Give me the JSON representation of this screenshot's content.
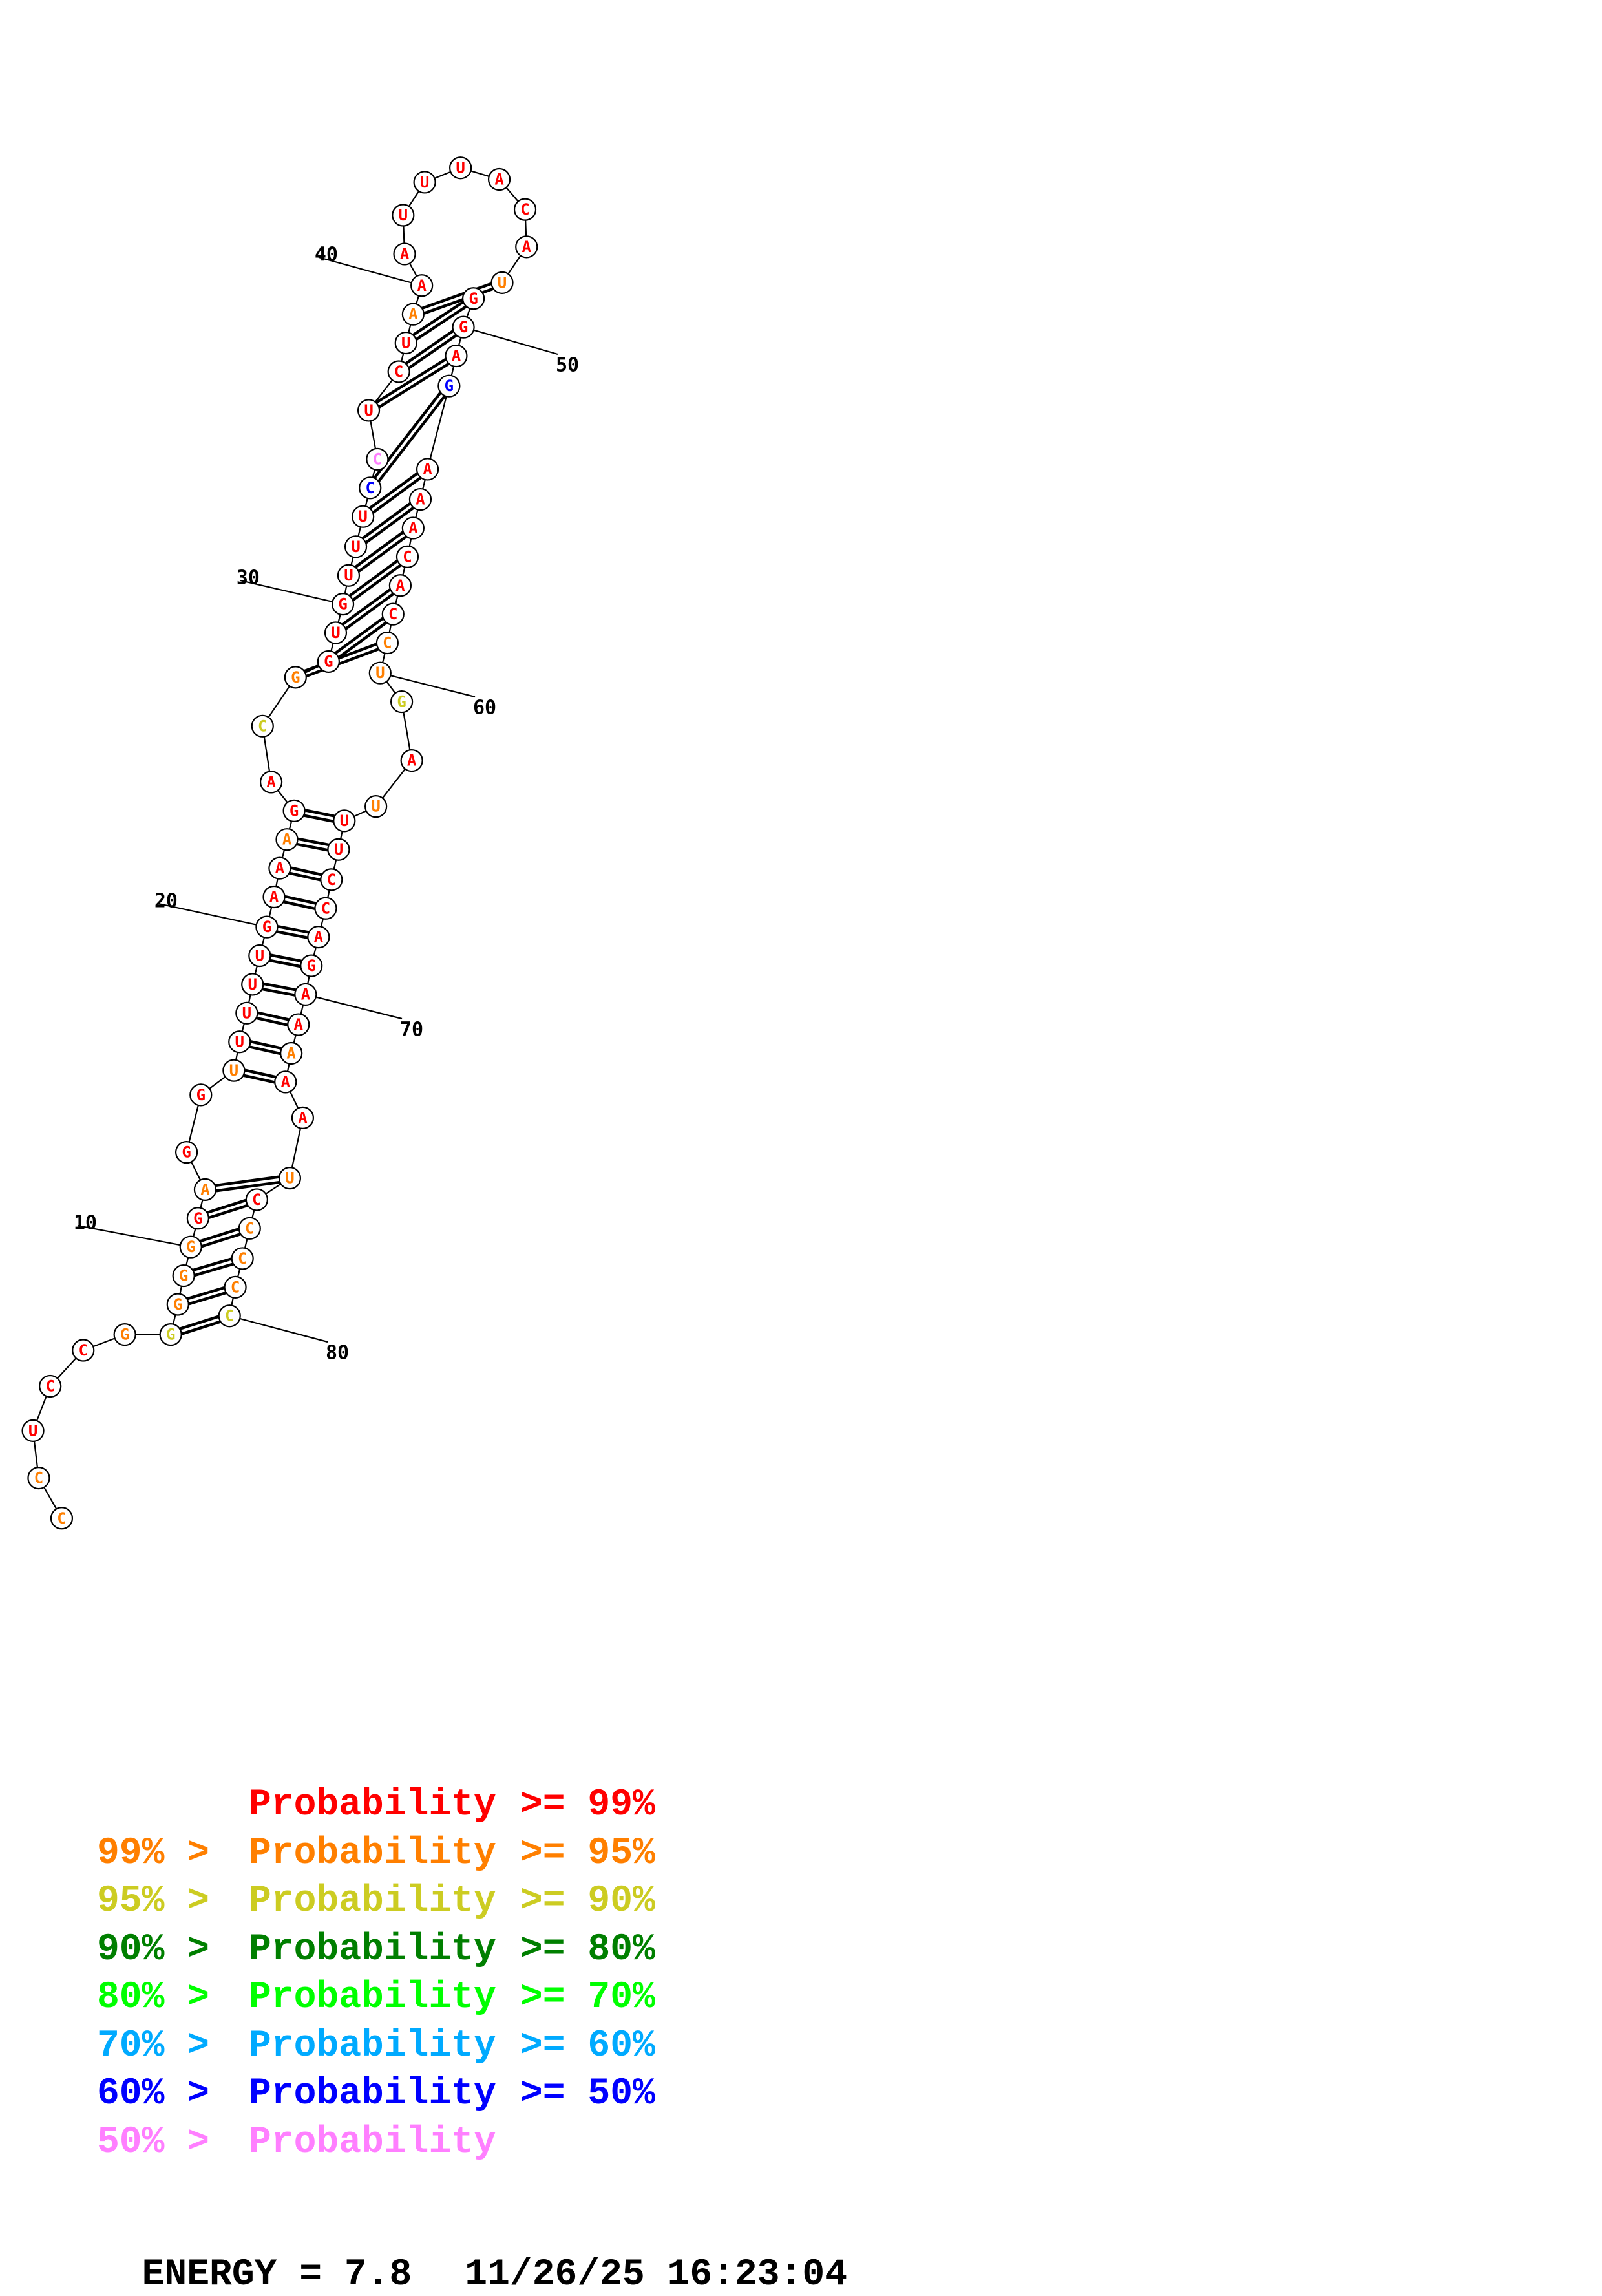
{
  "colors": {
    "p99": "#ff0000",
    "p95": "#ff7f00",
    "p90": "#cccc22",
    "p80": "#007f00",
    "p70": "#00ff00",
    "p60": "#00aaff",
    "p50": "#0000ff",
    "plow": "#ff7fff"
  },
  "nucleotides": [
    {
      "n": 1,
      "b": "C",
      "c": "p95"
    },
    {
      "n": 2,
      "b": "C",
      "c": "p95"
    },
    {
      "n": 3,
      "b": "U",
      "c": "p99"
    },
    {
      "n": 4,
      "b": "C",
      "c": "p99"
    },
    {
      "n": 5,
      "b": "C",
      "c": "p99"
    },
    {
      "n": 6,
      "b": "G",
      "c": "p95"
    },
    {
      "n": 7,
      "b": "G",
      "c": "p90"
    },
    {
      "n": 8,
      "b": "G",
      "c": "p95"
    },
    {
      "n": 9,
      "b": "G",
      "c": "p95"
    },
    {
      "n": 10,
      "b": "G",
      "c": "p95"
    },
    {
      "n": 11,
      "b": "G",
      "c": "p99"
    },
    {
      "n": 12,
      "b": "A",
      "c": "p95"
    },
    {
      "n": 13,
      "b": "G",
      "c": "p99"
    },
    {
      "n": 14,
      "b": "G",
      "c": "p99"
    },
    {
      "n": 15,
      "b": "U",
      "c": "p95"
    },
    {
      "n": 16,
      "b": "U",
      "c": "p99"
    },
    {
      "n": 17,
      "b": "U",
      "c": "p99"
    },
    {
      "n": 18,
      "b": "U",
      "c": "p99"
    },
    {
      "n": 19,
      "b": "U",
      "c": "p99"
    },
    {
      "n": 20,
      "b": "G",
      "c": "p99"
    },
    {
      "n": 21,
      "b": "A",
      "c": "p99"
    },
    {
      "n": 22,
      "b": "A",
      "c": "p99"
    },
    {
      "n": 23,
      "b": "A",
      "c": "p95"
    },
    {
      "n": 24,
      "b": "G",
      "c": "p99"
    },
    {
      "n": 25,
      "b": "A",
      "c": "p99"
    },
    {
      "n": 26,
      "b": "C",
      "c": "p90"
    },
    {
      "n": 27,
      "b": "G",
      "c": "p95"
    },
    {
      "n": 28,
      "b": "G",
      "c": "p99"
    },
    {
      "n": 29,
      "b": "U",
      "c": "p99"
    },
    {
      "n": 30,
      "b": "G",
      "c": "p99"
    },
    {
      "n": 31,
      "b": "U",
      "c": "p99"
    },
    {
      "n": 32,
      "b": "U",
      "c": "p99"
    },
    {
      "n": 33,
      "b": "U",
      "c": "p99"
    },
    {
      "n": 34,
      "b": "C",
      "c": "p50"
    },
    {
      "n": 35,
      "b": "C",
      "c": "plow"
    },
    {
      "n": 36,
      "b": "U",
      "c": "p99"
    },
    {
      "n": 37,
      "b": "C",
      "c": "p99"
    },
    {
      "n": 38,
      "b": "U",
      "c": "p99"
    },
    {
      "n": 39,
      "b": "A",
      "c": "p95"
    },
    {
      "n": 40,
      "b": "A",
      "c": "p99"
    },
    {
      "n": 41,
      "b": "A",
      "c": "p99"
    },
    {
      "n": 42,
      "b": "U",
      "c": "p99"
    },
    {
      "n": 43,
      "b": "U",
      "c": "p99"
    },
    {
      "n": 44,
      "b": "U",
      "c": "p99"
    },
    {
      "n": 45,
      "b": "A",
      "c": "p99"
    },
    {
      "n": 46,
      "b": "C",
      "c": "p99"
    },
    {
      "n": 47,
      "b": "A",
      "c": "p99"
    },
    {
      "n": 48,
      "b": "U",
      "c": "p95"
    },
    {
      "n": 49,
      "b": "G",
      "c": "p99"
    },
    {
      "n": 50,
      "b": "G",
      "c": "p99"
    },
    {
      "n": 51,
      "b": "A",
      "c": "p99"
    },
    {
      "n": 52,
      "b": "G",
      "c": "p50"
    },
    {
      "n": 53,
      "b": "A",
      "c": "p99"
    },
    {
      "n": 54,
      "b": "A",
      "c": "p99"
    },
    {
      "n": 55,
      "b": "A",
      "c": "p99"
    },
    {
      "n": 56,
      "b": "C",
      "c": "p99"
    },
    {
      "n": 57,
      "b": "A",
      "c": "p99"
    },
    {
      "n": 58,
      "b": "C",
      "c": "p99"
    },
    {
      "n": 59,
      "b": "C",
      "c": "p95"
    },
    {
      "n": 60,
      "b": "U",
      "c": "p95"
    },
    {
      "n": 61,
      "b": "G",
      "c": "p90"
    },
    {
      "n": 62,
      "b": "A",
      "c": "p99"
    },
    {
      "n": 63,
      "b": "U",
      "c": "p95"
    },
    {
      "n": 64,
      "b": "U",
      "c": "p99"
    },
    {
      "n": 65,
      "b": "U",
      "c": "p99"
    },
    {
      "n": 66,
      "b": "C",
      "c": "p99"
    },
    {
      "n": 67,
      "b": "C",
      "c": "p99"
    },
    {
      "n": 68,
      "b": "A",
      "c": "p99"
    },
    {
      "n": 69,
      "b": "G",
      "c": "p99"
    },
    {
      "n": 70,
      "b": "A",
      "c": "p99"
    },
    {
      "n": 71,
      "b": "A",
      "c": "p99"
    },
    {
      "n": 72,
      "b": "A",
      "c": "p95"
    },
    {
      "n": 73,
      "b": "A",
      "c": "p99"
    },
    {
      "n": 74,
      "b": "A",
      "c": "p99"
    },
    {
      "n": 75,
      "b": "U",
      "c": "p95"
    },
    {
      "n": 76,
      "b": "C",
      "c": "p99"
    },
    {
      "n": 77,
      "b": "C",
      "c": "p95"
    },
    {
      "n": 78,
      "b": "C",
      "c": "p95"
    },
    {
      "n": 79,
      "b": "C",
      "c": "p95"
    },
    {
      "n": 80,
      "b": "C",
      "c": "p90"
    }
  ],
  "pairs": [
    [
      7,
      80
    ],
    [
      8,
      79
    ],
    [
      9,
      78
    ],
    [
      10,
      77
    ],
    [
      11,
      76
    ],
    [
      12,
      75
    ],
    [
      15,
      73
    ],
    [
      16,
      72
    ],
    [
      17,
      71
    ],
    [
      18,
      70
    ],
    [
      19,
      69
    ],
    [
      20,
      68
    ],
    [
      21,
      67
    ],
    [
      22,
      66
    ],
    [
      23,
      65
    ],
    [
      24,
      64
    ],
    [
      27,
      59
    ],
    [
      28,
      58
    ],
    [
      29,
      57
    ],
    [
      30,
      56
    ],
    [
      31,
      55
    ],
    [
      32,
      54
    ],
    [
      33,
      53
    ],
    [
      34,
      52
    ],
    [
      36,
      51
    ],
    [
      37,
      50
    ],
    [
      38,
      49
    ],
    [
      39,
      48
    ]
  ],
  "tick_labels": [
    {
      "n": 10,
      "text": "10",
      "side": "left"
    },
    {
      "n": 20,
      "text": "20",
      "side": "left"
    },
    {
      "n": 30,
      "text": "30",
      "side": "left"
    },
    {
      "n": 40,
      "text": "40",
      "side": "left"
    },
    {
      "n": 50,
      "text": "50",
      "side": "right"
    },
    {
      "n": 60,
      "text": "60",
      "side": "right"
    },
    {
      "n": 70,
      "text": "70",
      "side": "right"
    },
    {
      "n": 80,
      "text": "80",
      "side": "right"
    }
  ],
  "legend": [
    {
      "left": "",
      "mid": "Probability",
      "right": ">= 99%",
      "color": "p99"
    },
    {
      "left": "99% >",
      "mid": "Probability",
      "right": ">= 95%",
      "color": "p95"
    },
    {
      "left": "95% >",
      "mid": "Probability",
      "right": ">= 90%",
      "color": "p90"
    },
    {
      "left": "90% >",
      "mid": "Probability",
      "right": ">= 80%",
      "color": "p80"
    },
    {
      "left": "80% >",
      "mid": "Probability",
      "right": ">= 70%",
      "color": "p70"
    },
    {
      "left": "70% >",
      "mid": "Probability",
      "right": ">= 60%",
      "color": "p60"
    },
    {
      "left": "60% >",
      "mid": "Probability",
      "right": ">= 50%",
      "color": "p50"
    },
    {
      "left": "50% >",
      "mid": "Probability",
      "right": "",
      "color": "plow"
    }
  ],
  "footer": {
    "energy_label": "ENERGY = 7.8",
    "timestamp": "11/26/25 16:23:04"
  }
}
